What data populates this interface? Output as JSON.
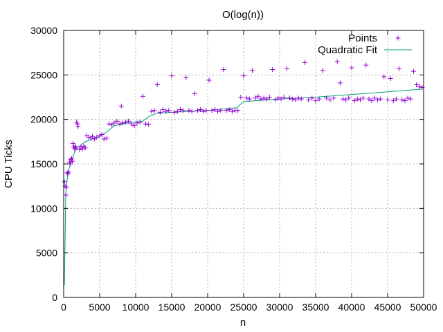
{
  "chart_data": {
    "type": "scatter",
    "title": "O(log(n))",
    "xlabel": "n",
    "ylabel": "CPU Ticks",
    "xlim": [
      0,
      50000
    ],
    "ylim": [
      0,
      30000
    ],
    "xticks": [
      0,
      5000,
      10000,
      15000,
      20000,
      25000,
      30000,
      35000,
      40000,
      45000,
      50000
    ],
    "yticks": [
      0,
      5000,
      10000,
      15000,
      20000,
      25000,
      30000
    ],
    "grid": true,
    "legend_position": "top-right",
    "series": [
      {
        "name": "Points",
        "kind": "points",
        "marker": "plus",
        "color": "#9400d3",
        "points": [
          [
            100,
            13000
          ],
          [
            200,
            12500
          ],
          [
            300,
            11500
          ],
          [
            400,
            12400
          ],
          [
            500,
            14000
          ],
          [
            600,
            13900
          ],
          [
            700,
            14100
          ],
          [
            800,
            15200
          ],
          [
            900,
            15000
          ],
          [
            1000,
            15500
          ],
          [
            1100,
            15600
          ],
          [
            1200,
            15300
          ],
          [
            1300,
            17300
          ],
          [
            1400,
            16900
          ],
          [
            1500,
            16700
          ],
          [
            1600,
            17000
          ],
          [
            1700,
            16800
          ],
          [
            1800,
            19700
          ],
          [
            1900,
            19500
          ],
          [
            2000,
            19200
          ],
          [
            2200,
            16600
          ],
          [
            2400,
            16900
          ],
          [
            2600,
            16700
          ],
          [
            2800,
            17000
          ],
          [
            3000,
            16800
          ],
          [
            3200,
            18200
          ],
          [
            3500,
            18000
          ],
          [
            3800,
            17900
          ],
          [
            4000,
            18100
          ],
          [
            4300,
            17800
          ],
          [
            4600,
            18000
          ],
          [
            5000,
            18200
          ],
          [
            5300,
            18300
          ],
          [
            5600,
            17800
          ],
          [
            6000,
            17900
          ],
          [
            6300,
            19500
          ],
          [
            6700,
            19400
          ],
          [
            7000,
            19600
          ],
          [
            7400,
            19800
          ],
          [
            7800,
            19500
          ],
          [
            8000,
            21500
          ],
          [
            8200,
            19600
          ],
          [
            8600,
            19700
          ],
          [
            9000,
            19800
          ],
          [
            9400,
            19500
          ],
          [
            9800,
            19300
          ],
          [
            10200,
            19600
          ],
          [
            10600,
            19700
          ],
          [
            11000,
            22600
          ],
          [
            11400,
            19500
          ],
          [
            11800,
            19400
          ],
          [
            12200,
            20900
          ],
          [
            12600,
            21000
          ],
          [
            13000,
            23900
          ],
          [
            13400,
            20800
          ],
          [
            13800,
            21100
          ],
          [
            14200,
            20900
          ],
          [
            14600,
            21000
          ],
          [
            15000,
            24900
          ],
          [
            15400,
            20800
          ],
          [
            15800,
            20900
          ],
          [
            16200,
            21100
          ],
          [
            16600,
            21000
          ],
          [
            17000,
            24700
          ],
          [
            17400,
            21000
          ],
          [
            17800,
            20900
          ],
          [
            18200,
            22900
          ],
          [
            18600,
            21000
          ],
          [
            19000,
            21100
          ],
          [
            19400,
            20900
          ],
          [
            19800,
            21000
          ],
          [
            20200,
            24400
          ],
          [
            20600,
            21000
          ],
          [
            21000,
            21100
          ],
          [
            21400,
            20900
          ],
          [
            21800,
            21000
          ],
          [
            22200,
            25600
          ],
          [
            22600,
            21000
          ],
          [
            23000,
            21100
          ],
          [
            23400,
            20900
          ],
          [
            23800,
            21000
          ],
          [
            24200,
            21000
          ],
          [
            24600,
            22500
          ],
          [
            25000,
            24900
          ],
          [
            25400,
            22400
          ],
          [
            25800,
            22300
          ],
          [
            26200,
            25500
          ],
          [
            26600,
            22400
          ],
          [
            27000,
            22600
          ],
          [
            27400,
            22300
          ],
          [
            27800,
            22400
          ],
          [
            28200,
            22300
          ],
          [
            28600,
            22500
          ],
          [
            29000,
            25600
          ],
          [
            29400,
            22200
          ],
          [
            29800,
            22400
          ],
          [
            30200,
            22300
          ],
          [
            30600,
            22500
          ],
          [
            31000,
            25700
          ],
          [
            31400,
            22400
          ],
          [
            31800,
            22300
          ],
          [
            32200,
            22200
          ],
          [
            32600,
            22400
          ],
          [
            33000,
            22300
          ],
          [
            33500,
            26400
          ],
          [
            34000,
            22200
          ],
          [
            34500,
            22400
          ],
          [
            35000,
            22100
          ],
          [
            35500,
            22300
          ],
          [
            36000,
            25500
          ],
          [
            36500,
            22400
          ],
          [
            37000,
            22200
          ],
          [
            37500,
            22400
          ],
          [
            38000,
            26500
          ],
          [
            38400,
            24100
          ],
          [
            38800,
            22300
          ],
          [
            39200,
            22200
          ],
          [
            39600,
            22400
          ],
          [
            40000,
            25800
          ],
          [
            40400,
            22100
          ],
          [
            40800,
            22300
          ],
          [
            41200,
            22200
          ],
          [
            41600,
            22400
          ],
          [
            42000,
            26100
          ],
          [
            42400,
            22300
          ],
          [
            42800,
            22100
          ],
          [
            43200,
            22400
          ],
          [
            43600,
            22200
          ],
          [
            44000,
            22300
          ],
          [
            44500,
            24800
          ],
          [
            45000,
            22200
          ],
          [
            45400,
            24600
          ],
          [
            45800,
            22100
          ],
          [
            46200,
            22300
          ],
          [
            46600,
            25700
          ],
          [
            47000,
            22200
          ],
          [
            47400,
            22100
          ],
          [
            47800,
            22400
          ],
          [
            48200,
            22300
          ],
          [
            48600,
            25400
          ],
          [
            49000,
            23900
          ],
          [
            49400,
            23700
          ],
          [
            49800,
            23600
          ]
        ]
      },
      {
        "name": "Quadratic Fit",
        "kind": "line",
        "color": "#009e73",
        "points": [
          [
            100,
            1400
          ],
          [
            300,
            11800
          ],
          [
            600,
            14000
          ],
          [
            1000,
            15200
          ],
          [
            1500,
            16300
          ],
          [
            2000,
            16900
          ],
          [
            3000,
            17500
          ],
          [
            4000,
            17800
          ],
          [
            5000,
            18100
          ],
          [
            6000,
            18600
          ],
          [
            7000,
            19300
          ],
          [
            9000,
            19600
          ],
          [
            11000,
            19800
          ],
          [
            12000,
            20400
          ],
          [
            13000,
            20700
          ],
          [
            15000,
            20800
          ],
          [
            20000,
            21000
          ],
          [
            24000,
            21300
          ],
          [
            25000,
            22000
          ],
          [
            30000,
            22300
          ],
          [
            35000,
            22500
          ],
          [
            40000,
            22800
          ],
          [
            45000,
            23100
          ],
          [
            49800,
            23400
          ]
        ]
      }
    ]
  }
}
